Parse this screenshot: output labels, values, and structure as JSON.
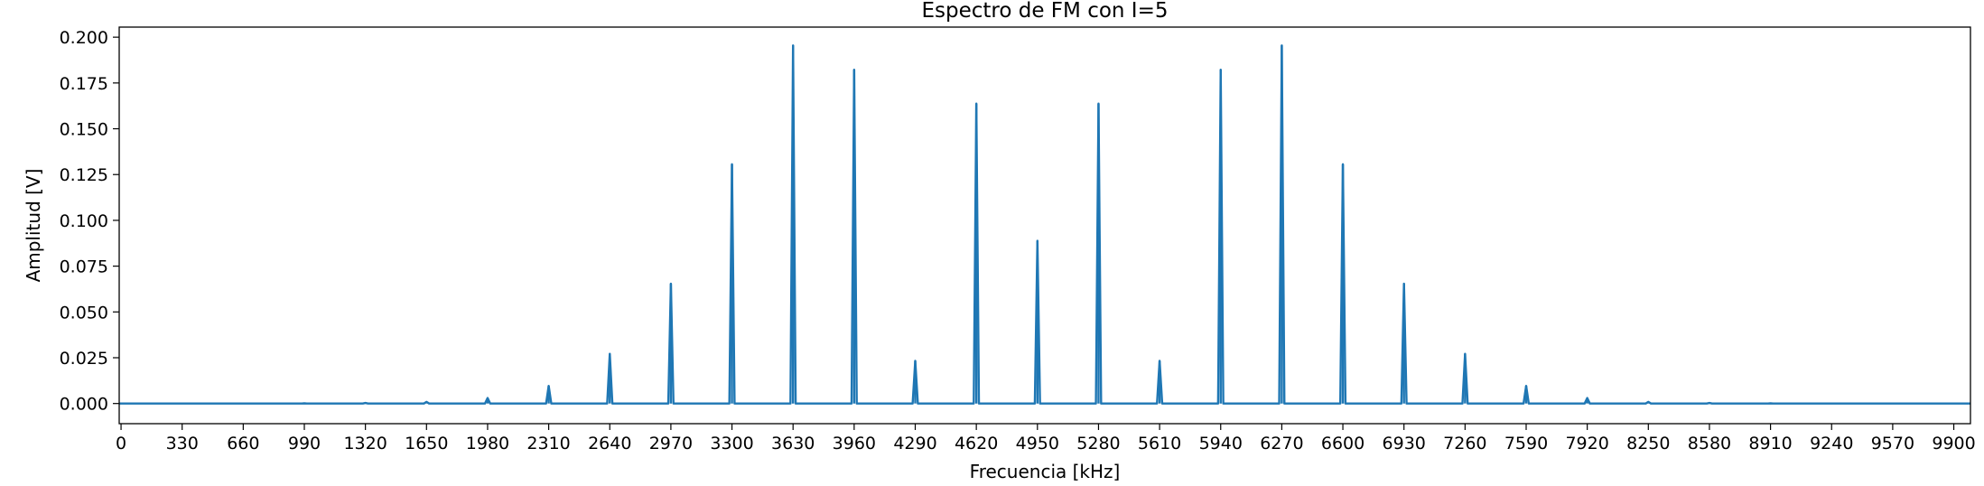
{
  "chart_data": {
    "type": "line",
    "title": "Espectro de FM con I=5",
    "xlabel": "Frecuencia [kHz]",
    "ylabel": "Amplitud [V]",
    "xlim": [
      -10,
      9990
    ],
    "ylim": [
      -0.011,
      0.2055
    ],
    "x_ticks": [
      0,
      330,
      660,
      990,
      1320,
      1650,
      1980,
      2310,
      2640,
      2970,
      3300,
      3630,
      3960,
      4290,
      4620,
      4950,
      5280,
      5610,
      5940,
      6270,
      6600,
      6930,
      7260,
      7590,
      7920,
      8250,
      8580,
      8910,
      9240,
      9570,
      9900
    ],
    "y_ticks": [
      "0.000",
      "0.025",
      "0.050",
      "0.075",
      "0.100",
      "0.125",
      "0.150",
      "0.175",
      "0.200"
    ],
    "grid": false,
    "series": [
      {
        "color": "#1f77b4",
        "peaks": [
          {
            "x": 990,
            "y": 0.0001
          },
          {
            "x": 1320,
            "y": 0.0003
          },
          {
            "x": 1650,
            "y": 0.0009
          },
          {
            "x": 1980,
            "y": 0.003
          },
          {
            "x": 2310,
            "y": 0.0096
          },
          {
            "x": 2640,
            "y": 0.0271
          },
          {
            "x": 2970,
            "y": 0.0654
          },
          {
            "x": 3300,
            "y": 0.1306
          },
          {
            "x": 3630,
            "y": 0.1955
          },
          {
            "x": 3960,
            "y": 0.1822
          },
          {
            "x": 4290,
            "y": 0.0233
          },
          {
            "x": 4620,
            "y": 0.1637
          },
          {
            "x": 4950,
            "y": 0.0888
          },
          {
            "x": 5280,
            "y": 0.1637
          },
          {
            "x": 5610,
            "y": 0.0233
          },
          {
            "x": 5940,
            "y": 0.1822
          },
          {
            "x": 6270,
            "y": 0.1955
          },
          {
            "x": 6600,
            "y": 0.1306
          },
          {
            "x": 6930,
            "y": 0.0654
          },
          {
            "x": 7260,
            "y": 0.0271
          },
          {
            "x": 7590,
            "y": 0.0096
          },
          {
            "x": 7920,
            "y": 0.003
          },
          {
            "x": 8250,
            "y": 0.0009
          },
          {
            "x": 8580,
            "y": 0.0003
          },
          {
            "x": 8910,
            "y": 0.0001
          }
        ]
      }
    ]
  }
}
